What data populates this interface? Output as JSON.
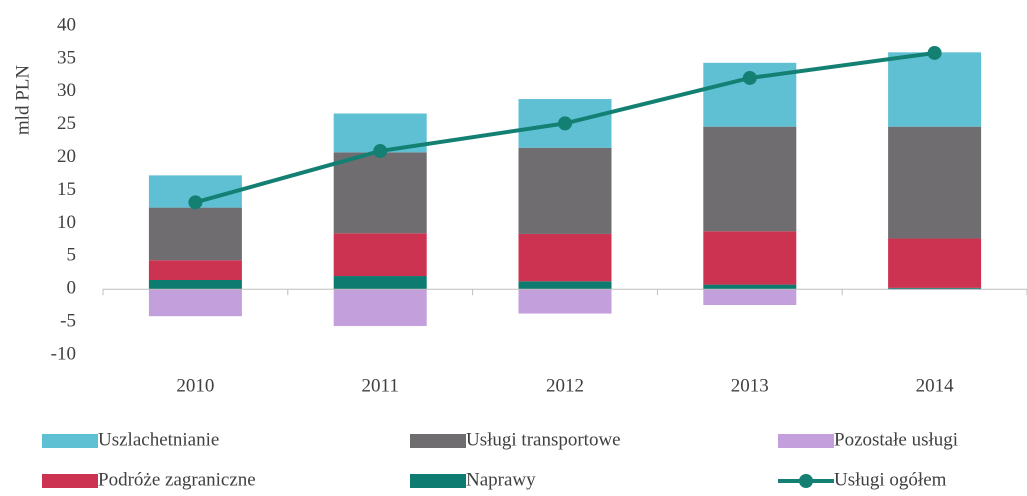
{
  "chart_data": {
    "type": "bar",
    "stacked": true,
    "ylabel": "mld PLN",
    "categories": [
      "2010",
      "2011",
      "2012",
      "2013",
      "2014"
    ],
    "ylim": [
      -10,
      40
    ],
    "yticks": [
      -10,
      -5,
      0,
      5,
      10,
      15,
      20,
      25,
      30,
      35,
      40
    ],
    "grid": false,
    "series": [
      {
        "name": "Uszlachetnianie",
        "color": "#5fc0d3",
        "values": [
          4.9,
          5.9,
          7.4,
          9.7,
          11.3
        ]
      },
      {
        "name": "Usługi transportowe",
        "color": "#6f6d70",
        "values": [
          8.0,
          12.3,
          13.1,
          15.9,
          17.0
        ]
      },
      {
        "name": "Pozostałe usługi",
        "color": "#c39fdb",
        "values": [
          -4.1,
          -5.6,
          -3.7,
          -2.4,
          -0.1
        ]
      },
      {
        "name": "Podróże zagraniczne",
        "color": "#cc3350",
        "values": [
          3.0,
          6.5,
          7.2,
          8.1,
          7.5
        ]
      },
      {
        "name": "Naprawy",
        "color": "#0d7b6f",
        "values": [
          1.4,
          2.0,
          1.2,
          0.7,
          0.2
        ]
      },
      {
        "name": "Usługi ogółem",
        "color": "#138073",
        "type": "line",
        "values": [
          13.2,
          21.0,
          25.2,
          32.1,
          35.9
        ]
      }
    ],
    "legend": "bottom"
  }
}
